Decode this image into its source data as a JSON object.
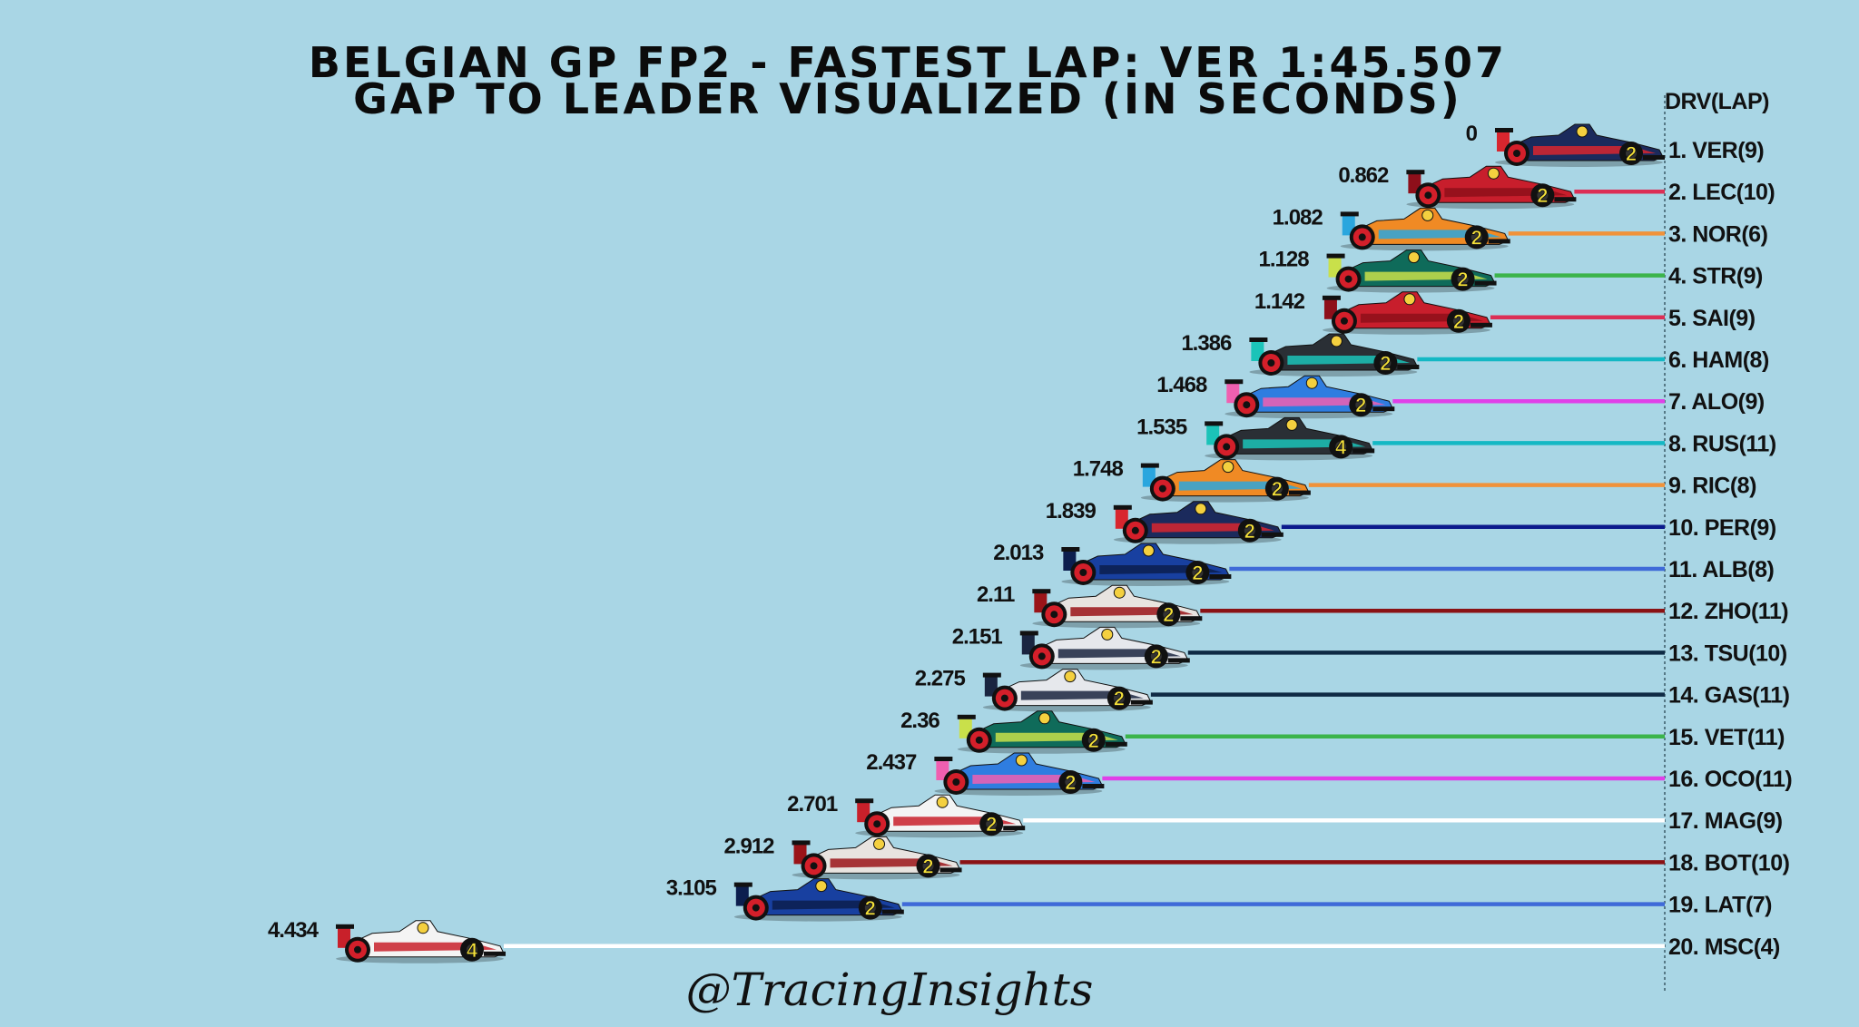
{
  "chart_data": {
    "type": "bar",
    "title": "BELGIAN GP FP2 - FASTEST LAP: VER 1:45.507",
    "subtitle": "GAP TO LEADER VISUALIZED (IN SECONDS)",
    "column_header": "DRV(LAP)",
    "watermark": "@TracingInsights",
    "xlim": [
      0,
      4.434
    ],
    "direction": "right-to-left",
    "bars": [
      {
        "label": "1. VER(9)",
        "gap_text": "0",
        "value": 0,
        "color": "#1e3a8a",
        "car": "#1b2a5c",
        "accent": "#d8262e",
        "tyre": "2"
      },
      {
        "label": "2. LEC(10)",
        "gap_text": "0.862",
        "value": 0.862,
        "color": "#dc2f55",
        "car": "#c81e2c",
        "accent": "#8e0f1a",
        "tyre": "2"
      },
      {
        "label": "3. NOR(6)",
        "gap_text": "1.082",
        "value": 1.082,
        "color": "#f0923a",
        "car": "#f08a24",
        "accent": "#2aa6de",
        "tyre": "2"
      },
      {
        "label": "4. STR(9)",
        "gap_text": "1.128",
        "value": 1.128,
        "color": "#3cb44b",
        "car": "#0f6b5a",
        "accent": "#c9e04a",
        "tyre": "2"
      },
      {
        "label": "5. SAI(9)",
        "gap_text": "1.142",
        "value": 1.142,
        "color": "#dc2f55",
        "car": "#c81e2c",
        "accent": "#8e0f1a",
        "tyre": "2"
      },
      {
        "label": "6. HAM(8)",
        "gap_text": "1.386",
        "value": 1.386,
        "color": "#14b8c4",
        "car": "#2a2f35",
        "accent": "#1bc3b8",
        "tyre": "2"
      },
      {
        "label": "7. ALO(9)",
        "gap_text": "1.468",
        "value": 1.468,
        "color": "#e040e8",
        "car": "#2f7de0",
        "accent": "#f05fb0",
        "tyre": "2"
      },
      {
        "label": "8. RUS(11)",
        "gap_text": "1.535",
        "value": 1.535,
        "color": "#14b8c4",
        "car": "#2a2f35",
        "accent": "#1bc3b8",
        "tyre": "4"
      },
      {
        "label": "9. RIC(8)",
        "gap_text": "1.748",
        "value": 1.748,
        "color": "#f0923a",
        "car": "#f08a24",
        "accent": "#2aa6de",
        "tyre": "2"
      },
      {
        "label": "10. PER(9)",
        "gap_text": "1.839",
        "value": 1.839,
        "color": "#0b1a8c",
        "car": "#1b2a5c",
        "accent": "#d8262e",
        "tyre": "2"
      },
      {
        "label": "11. ALB(8)",
        "gap_text": "2.013",
        "value": 2.013,
        "color": "#3f6ad8",
        "car": "#1840a0",
        "accent": "#0c1e4e",
        "tyre": "2"
      },
      {
        "label": "12. ZHO(11)",
        "gap_text": "2.11",
        "value": 2.11,
        "color": "#8a1214",
        "car": "#e8e4e0",
        "accent": "#9a1418",
        "tyre": "2"
      },
      {
        "label": "13. TSU(10)",
        "gap_text": "2.151",
        "value": 2.151,
        "color": "#0f2a44",
        "car": "#e6e8ec",
        "accent": "#1a2540",
        "tyre": "2"
      },
      {
        "label": "14. GAS(11)",
        "gap_text": "2.275",
        "value": 2.275,
        "color": "#0f2a44",
        "car": "#e6e8ec",
        "accent": "#1a2540",
        "tyre": "2"
      },
      {
        "label": "15. VET(11)",
        "gap_text": "2.36",
        "value": 2.36,
        "color": "#3cb44b",
        "car": "#0f6b5a",
        "accent": "#c9e04a",
        "tyre": "2"
      },
      {
        "label": "16. OCO(11)",
        "gap_text": "2.437",
        "value": 2.437,
        "color": "#e040e8",
        "car": "#2f7de0",
        "accent": "#f05fb0",
        "tyre": "2"
      },
      {
        "label": "17. MAG(9)",
        "gap_text": "2.701",
        "value": 2.701,
        "color": "#ffffff",
        "car": "#f4f4f4",
        "accent": "#c8202a",
        "tyre": "2"
      },
      {
        "label": "18. BOT(10)",
        "gap_text": "2.912",
        "value": 2.912,
        "color": "#8a1214",
        "car": "#e8e4e0",
        "accent": "#9a1418",
        "tyre": "2"
      },
      {
        "label": "19. LAT(7)",
        "gap_text": "3.105",
        "value": 3.105,
        "color": "#3f6ad8",
        "car": "#1840a0",
        "accent": "#0c1e4e",
        "tyre": "2"
      },
      {
        "label": "20. MSC(4)",
        "gap_text": "4.434",
        "value": 4.434,
        "color": "#ffffff",
        "car": "#f4f4f4",
        "accent": "#c8202a",
        "tyre": "4"
      }
    ]
  }
}
